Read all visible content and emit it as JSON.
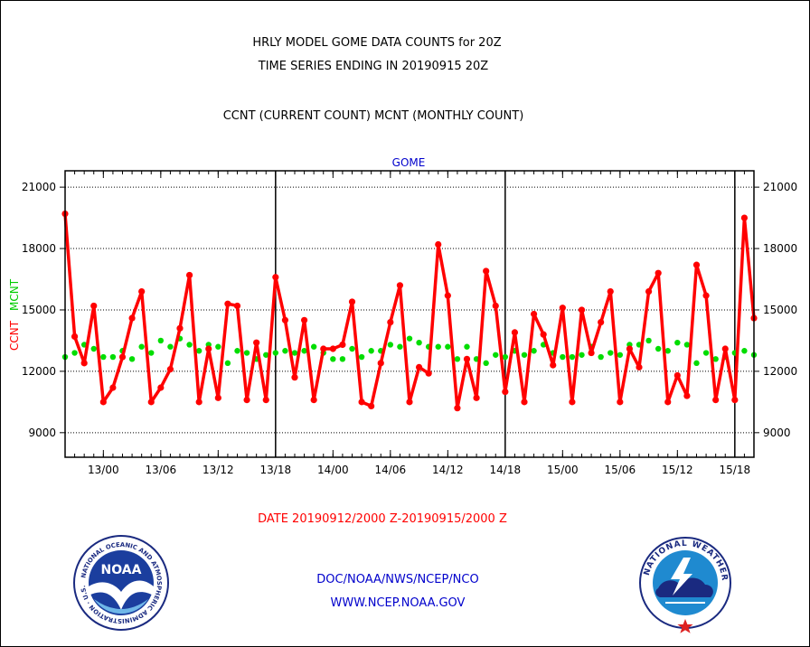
{
  "header": {
    "title_line1": "HRLY MODEL GOME DATA COUNTS for 20Z",
    "title_line2": "TIME SERIES ENDING IN 20190915 20Z",
    "subtitle": "CCNT (CURRENT COUNT) MCNT (MONTHLY COUNT)"
  },
  "footer": {
    "date_range": "DATE 20190912/2000 Z-20190915/2000 Z",
    "org": "DOC/NOAA/NWS/NCEP/NCO",
    "url": "WWW.NCEP.NOAA.GOV",
    "noaa_logo_text": "NOAA",
    "noaa_ring_text": "NATIONAL OCEANIC AND ATMOSPHERIC ADMINISTRATION · U.S. DEPARTMENT OF COMMERCE",
    "nws_ring_text": "NATIONAL WEATHER SERVICE"
  },
  "colors": {
    "ccnt": "#ff0000",
    "mcnt": "#00dd00",
    "panel_title": "#0000cc",
    "footer_text": "#0000cc",
    "date_text": "#ff0000"
  },
  "chart_data": {
    "type": "line",
    "title": "GOME",
    "ylabel_left_1": "CCNT",
    "ylabel_left_2": "MCNT",
    "ylim": [
      7800,
      21800
    ],
    "yticks": [
      9000,
      12000,
      15000,
      18000,
      21000
    ],
    "ytick_labels": [
      "9000",
      "12000",
      "15000",
      "18000",
      "21000"
    ],
    "x_index_range": [
      0,
      72
    ],
    "xticks": [
      {
        "index": 4,
        "label": "13/00"
      },
      {
        "index": 10,
        "label": "13/06"
      },
      {
        "index": 16,
        "label": "13/12"
      },
      {
        "index": 22,
        "label": "13/18"
      },
      {
        "index": 28,
        "label": "14/00"
      },
      {
        "index": 34,
        "label": "14/06"
      },
      {
        "index": 40,
        "label": "14/12"
      },
      {
        "index": 46,
        "label": "14/18"
      },
      {
        "index": 52,
        "label": "15/00"
      },
      {
        "index": 58,
        "label": "15/06"
      },
      {
        "index": 64,
        "label": "15/12"
      },
      {
        "index": 70,
        "label": "15/18"
      }
    ],
    "day_boundaries": [
      22,
      46,
      70
    ],
    "grid": true,
    "series": [
      {
        "name": "CCNT",
        "values": [
          19700,
          13700,
          12400,
          15200,
          10500,
          11200,
          12700,
          14600,
          15900,
          10500,
          11200,
          12100,
          14100,
          16700,
          10500,
          13100,
          10700,
          15300,
          15200,
          10600,
          13400,
          10600,
          16600,
          14500,
          11700,
          14500,
          10600,
          13100,
          13100,
          13300,
          15400,
          10500,
          10300,
          12400,
          14400,
          16200,
          10500,
          12200,
          11900,
          18200,
          15700,
          10200,
          12600,
          10700,
          16900,
          15200,
          11000,
          13900,
          10500,
          14800,
          13800,
          12300,
          15100,
          10500,
          15000,
          12900,
          14400,
          15900,
          10500,
          13100,
          12200,
          15900,
          16800,
          10500,
          11800,
          10800,
          17200,
          15700,
          10600,
          13100,
          10600,
          19500,
          14600
        ]
      },
      {
        "name": "MCNT",
        "values": [
          12700,
          12900,
          13300,
          13100,
          12700,
          12700,
          13000,
          12600,
          13200,
          12900,
          13500,
          13200,
          13600,
          13300,
          13000,
          13300,
          13200,
          12400,
          13000,
          12900,
          12600,
          12800,
          12900,
          13000,
          12900,
          13000,
          13200,
          12900,
          12600,
          12600,
          13100,
          12700,
          13000,
          13000,
          13300,
          13200,
          13600,
          13400,
          13200,
          13200,
          13200,
          12600,
          13200,
          12600,
          12400,
          12800,
          12700,
          13000,
          12800,
          13000,
          13300,
          12900,
          12700,
          12700,
          12800,
          13200,
          12700,
          12900,
          12800,
          13300,
          13300,
          13500,
          13100,
          13000,
          13400,
          13300,
          12400,
          12900,
          12600,
          12700,
          12900,
          13000,
          12800
        ]
      }
    ]
  }
}
